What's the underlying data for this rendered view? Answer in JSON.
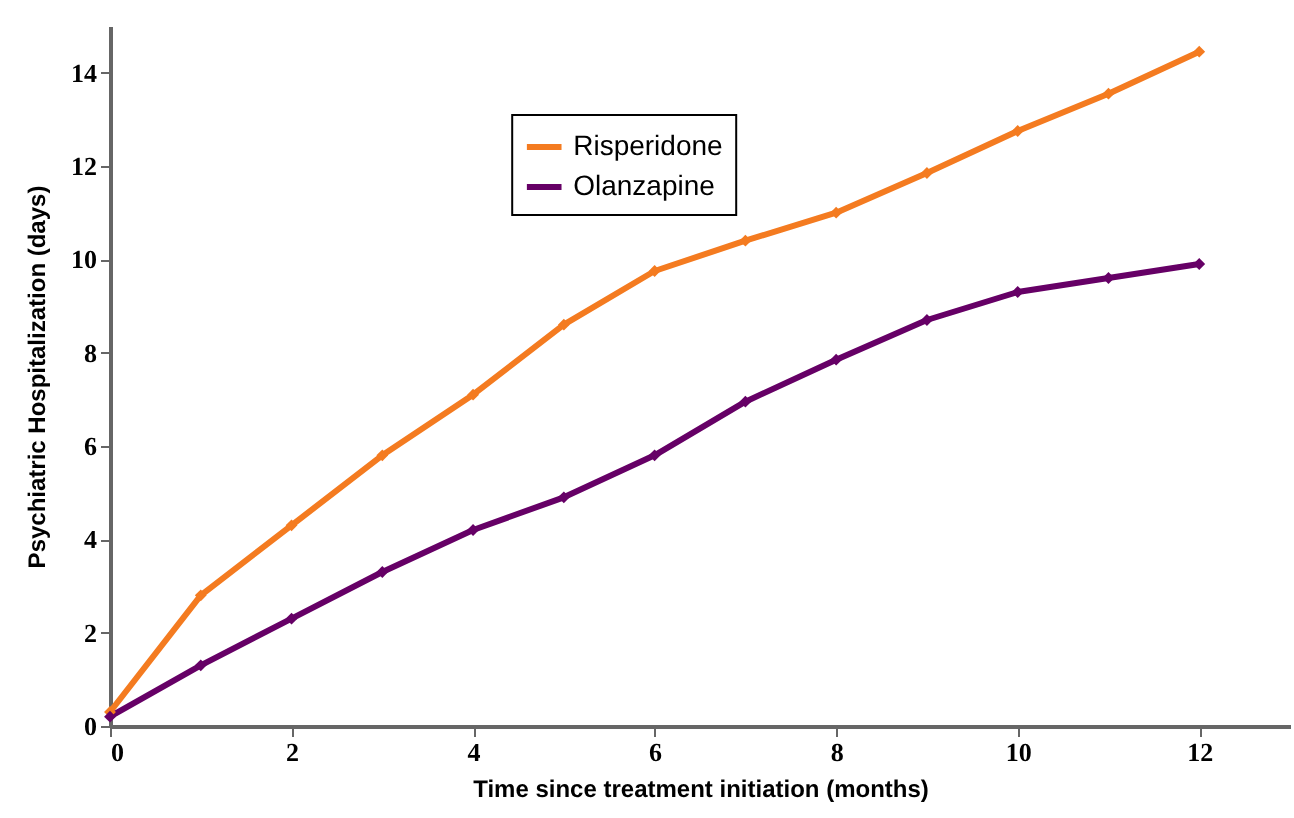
{
  "chart_data": {
    "type": "line",
    "xlabel": "Time since treatment initiation (months)",
    "ylabel": "Psychiatric Hospitalization (days)",
    "x": [
      0,
      1,
      2,
      3,
      4,
      5,
      6,
      7,
      8,
      9,
      10,
      11,
      12
    ],
    "series": [
      {
        "name": "Risperidone",
        "color": "#f47b20",
        "values": [
          0.3,
          2.8,
          4.3,
          5.8,
          7.1,
          8.6,
          9.75,
          10.4,
          11.0,
          11.85,
          12.75,
          13.55,
          14.45
        ]
      },
      {
        "name": "Olanzapine",
        "color": "#660066",
        "values": [
          0.2,
          1.3,
          2.3,
          3.3,
          4.2,
          4.9,
          5.8,
          6.95,
          7.85,
          8.7,
          9.3,
          9.6,
          9.9
        ]
      }
    ],
    "xlim": [
      0,
      13
    ],
    "xticks": [
      0,
      2,
      4,
      6,
      8,
      10,
      12
    ],
    "ylim": [
      0,
      15
    ],
    "yticks": [
      0,
      2,
      4,
      6,
      8,
      10,
      12,
      14
    ],
    "grid": false,
    "legend": "top",
    "marker": "diamond",
    "line_style": "solid"
  }
}
